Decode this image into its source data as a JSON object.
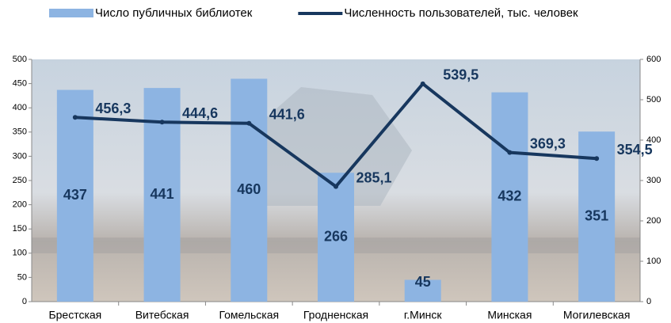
{
  "chart_data": {
    "type": "combo",
    "categories": [
      "Брестская",
      "Витебская",
      "Гомельская",
      "Гродненская",
      "г.Минск",
      "Минская",
      "Могилевская"
    ],
    "series": [
      {
        "name": "Число публичных библиотек",
        "type": "bar",
        "color": "#8db4e2",
        "values": [
          437,
          441,
          460,
          266,
          45,
          432,
          351
        ]
      },
      {
        "name": "Численность пользователей, тыс. человек",
        "type": "line",
        "axis": "y2",
        "color": "#17375e",
        "values": [
          456.3,
          444.6,
          441.6,
          285.1,
          539.5,
          369.3,
          354.5
        ],
        "value_labels": [
          "456,3",
          "444,6",
          "441,6",
          "285,1",
          "539,5",
          "369,3",
          "354,5"
        ]
      }
    ],
    "ylim": [
      0,
      500
    ],
    "yticks": [
      0,
      50,
      100,
      150,
      200,
      250,
      300,
      350,
      400,
      450,
      500
    ],
    "y2lim": [
      0,
      600
    ],
    "y2ticks": [
      0,
      100,
      200,
      300,
      400,
      500,
      600
    ],
    "legend": "top"
  }
}
